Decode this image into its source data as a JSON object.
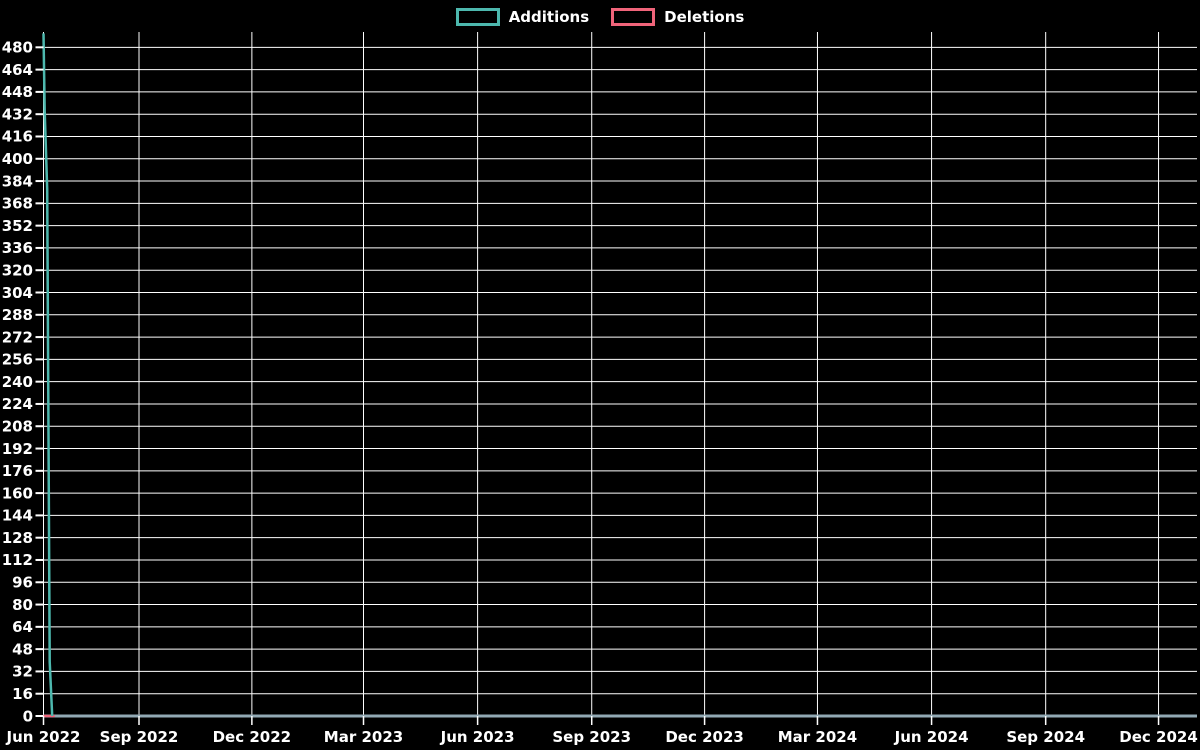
{
  "legend": {
    "items": [
      {
        "label": "Additions",
        "color": "#4db8ae"
      },
      {
        "label": "Deletions",
        "color": "#f0647a"
      }
    ]
  },
  "chart_data": {
    "type": "line",
    "title": "",
    "legend_position": "top-center",
    "background_color": "#000000",
    "grid": true,
    "grid_color": "#ffffff",
    "text_color": "#ffffff",
    "baseline_color": "#92a9b4",
    "x_axis": {
      "type": "time",
      "start": "2022-06-16",
      "end": "2025-01-01",
      "ticks": [
        {
          "date": "2022-06-16",
          "label": "Jun 2022"
        },
        {
          "date": "2022-09-01",
          "label": "Sep 2022"
        },
        {
          "date": "2022-12-01",
          "label": "Dec 2022"
        },
        {
          "date": "2023-03-01",
          "label": "Mar 2023"
        },
        {
          "date": "2023-06-01",
          "label": "Jun 2023"
        },
        {
          "date": "2023-09-01",
          "label": "Sep 2023"
        },
        {
          "date": "2023-12-01",
          "label": "Dec 2023"
        },
        {
          "date": "2024-03-01",
          "label": "Mar 2024"
        },
        {
          "date": "2024-06-01",
          "label": "Jun 2024"
        },
        {
          "date": "2024-09-01",
          "label": "Sep 2024"
        },
        {
          "date": "2024-12-01",
          "label": "Dec 2024"
        }
      ]
    },
    "y_axis": {
      "min": 0,
      "max": 491,
      "tick_min": 0,
      "tick_max": 480,
      "tick_step": 16
    },
    "series": [
      {
        "name": "Additions",
        "color": "#4db8ae",
        "points": [
          [
            "2022-06-16",
            490
          ],
          [
            "2022-06-17",
            434
          ],
          [
            "2022-06-19",
            378
          ],
          [
            "2022-06-21",
            39
          ],
          [
            "2022-06-23",
            0
          ]
        ]
      },
      {
        "name": "Deletions",
        "color": "#f0647a",
        "points": [
          [
            "2022-06-16",
            0
          ],
          [
            "2022-06-25",
            0
          ]
        ]
      }
    ]
  }
}
